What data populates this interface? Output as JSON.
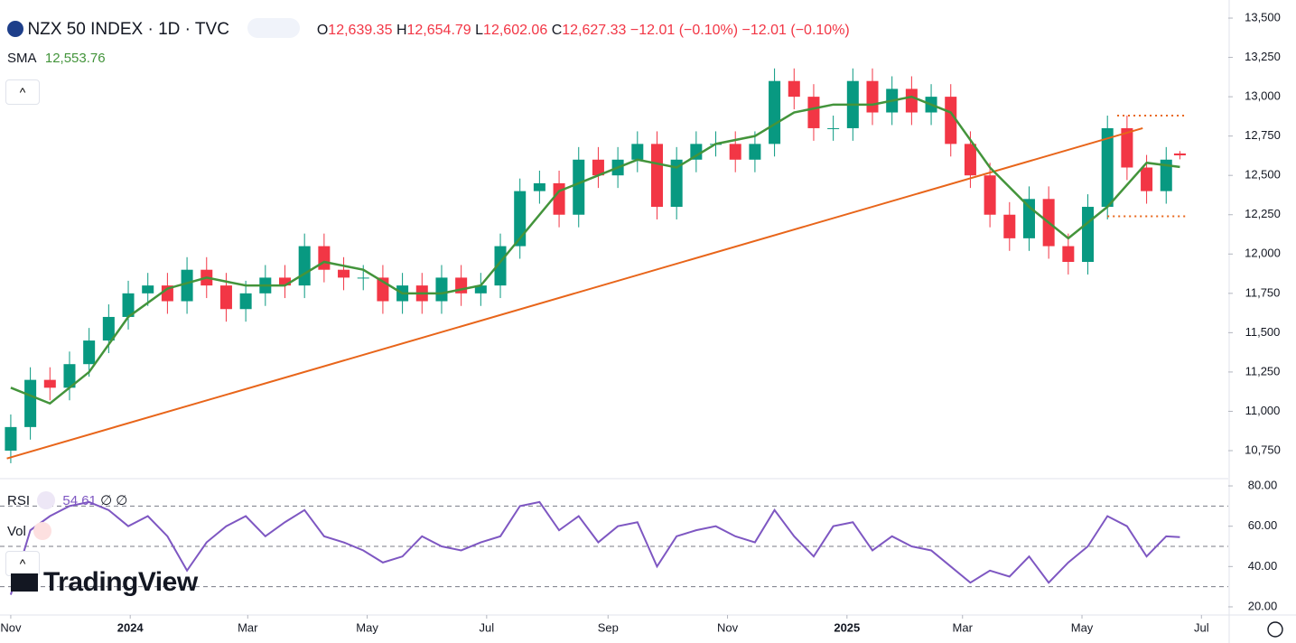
{
  "chart_data": [
    {
      "type": "candlestick",
      "title": "NZX 50 INDEX · 1D · TVC",
      "header": {
        "o_label": "O",
        "o": "12,639.35",
        "h_label": "H",
        "h": "12,654.79",
        "l_label": "L",
        "l": "12,602.06",
        "c_label": "C",
        "c": "12,627.33",
        "change": "−12.01 (−0.10%)",
        "change2": "−12.01 (−0.10%)"
      },
      "x": [
        0,
        10,
        20,
        30,
        40,
        50,
        60,
        70,
        80,
        90,
        100,
        110,
        120,
        130,
        140,
        150,
        160,
        170,
        180,
        190,
        200,
        210,
        220,
        230,
        240,
        250,
        260,
        270,
        280,
        290,
        300,
        310,
        320,
        330,
        340,
        350,
        360,
        370,
        380,
        390,
        400,
        410,
        420,
        430,
        440,
        450,
        460,
        470,
        480,
        490,
        500,
        510,
        520,
        530,
        540,
        550,
        560,
        570,
        580,
        590,
        597
      ],
      "open": [
        10750,
        10900,
        11200,
        11150,
        11300,
        11450,
        11600,
        11750,
        11800,
        11700,
        11900,
        11800,
        11650,
        11750,
        11850,
        11800,
        12050,
        11900,
        11850,
        11850,
        11700,
        11800,
        11700,
        11850,
        11750,
        11800,
        12050,
        12400,
        12450,
        12250,
        12600,
        12500,
        12600,
        12700,
        12300,
        12600,
        12700,
        12700,
        12600,
        12700,
        13100,
        13000,
        12800,
        12800,
        13100,
        12900,
        13050,
        12900,
        13000,
        12700,
        12500,
        12250,
        12100,
        12350,
        12050,
        11950,
        12300,
        12800,
        12550,
        12400,
        12639.35
      ],
      "high": [
        10980,
        11280,
        11280,
        11380,
        11530,
        11680,
        11830,
        11880,
        11880,
        11980,
        11980,
        11880,
        11830,
        11930,
        11930,
        12130,
        12130,
        11980,
        11930,
        11930,
        11880,
        11880,
        11930,
        11930,
        11880,
        12130,
        12480,
        12530,
        12530,
        12680,
        12680,
        12680,
        12780,
        12780,
        12680,
        12780,
        12780,
        12780,
        12780,
        13180,
        13180,
        13080,
        12880,
        13180,
        13180,
        13130,
        13130,
        13080,
        13080,
        12780,
        12580,
        12330,
        12430,
        12430,
        12130,
        12380,
        12880,
        12880,
        12630,
        12680,
        12654.79
      ],
      "low": [
        10670,
        10820,
        11070,
        11070,
        11220,
        11370,
        11520,
        11670,
        11620,
        11620,
        11720,
        11570,
        11570,
        11670,
        11720,
        11720,
        11820,
        11770,
        11770,
        11620,
        11620,
        11620,
        11620,
        11670,
        11670,
        11720,
        11970,
        12320,
        12170,
        12170,
        12420,
        12420,
        12520,
        12220,
        12220,
        12520,
        12620,
        12520,
        12520,
        12620,
        12920,
        12720,
        12720,
        12720,
        12820,
        12820,
        12820,
        12820,
        12620,
        12420,
        12170,
        12020,
        12020,
        11970,
        11870,
        11870,
        12220,
        12470,
        12320,
        12320,
        12602.06
      ],
      "close": [
        10900,
        11200,
        11150,
        11300,
        11450,
        11600,
        11750,
        11800,
        11700,
        11900,
        11800,
        11650,
        11750,
        11850,
        11800,
        12050,
        11900,
        11850,
        11850,
        11700,
        11800,
        11700,
        11850,
        11750,
        11800,
        12050,
        12400,
        12450,
        12250,
        12600,
        12500,
        12600,
        12700,
        12300,
        12600,
        12700,
        12700,
        12600,
        12700,
        13100,
        13000,
        12800,
        12800,
        13100,
        12900,
        13050,
        12900,
        13000,
        12700,
        12500,
        12250,
        12100,
        12350,
        12050,
        11950,
        12300,
        12800,
        12550,
        12400,
        12600,
        12627.33
      ],
      "up_color": "#089981",
      "down_color": "#f23645",
      "sma": {
        "name": "SMA",
        "value_label": "12,553.76",
        "color": "#43943b",
        "x": [
          0,
          20,
          40,
          60,
          80,
          100,
          120,
          140,
          160,
          180,
          200,
          220,
          240,
          260,
          280,
          300,
          320,
          340,
          360,
          380,
          400,
          420,
          440,
          460,
          480,
          500,
          520,
          540,
          560,
          580,
          597
        ],
        "values": [
          11150,
          11050,
          11250,
          11600,
          11780,
          11850,
          11800,
          11800,
          11950,
          11900,
          11750,
          11750,
          11800,
          12100,
          12400,
          12500,
          12600,
          12550,
          12700,
          12750,
          12900,
          12950,
          12950,
          13000,
          12900,
          12550,
          12300,
          12100,
          12300,
          12580,
          12553.76
        ]
      },
      "trendline": {
        "x": [
          -2,
          578
        ],
        "values": [
          10700,
          12800
        ],
        "color": "#e8651a"
      },
      "levels": [
        {
          "x": [
            565,
            600
          ],
          "value": 12880,
          "color": "#e8651a"
        },
        {
          "x": [
            560,
            600
          ],
          "value": 12240,
          "color": "#e8651a"
        }
      ],
      "grid": false,
      "xlim": [
        -5.5,
        621.7
      ],
      "ylim": [
        10572,
        13615
      ],
      "yticks": [
        {
          "value": 10750,
          "label": "10,750"
        },
        {
          "value": 11000,
          "label": "11,000"
        },
        {
          "value": 11250,
          "label": "11,250"
        },
        {
          "value": 11500,
          "label": "11,500"
        },
        {
          "value": 11750,
          "label": "11,750"
        },
        {
          "value": 12000,
          "label": "12,000"
        },
        {
          "value": 12250,
          "label": "12,250"
        },
        {
          "value": 12500,
          "label": "12,500"
        },
        {
          "value": 12750,
          "label": "12,750"
        },
        {
          "value": 13000,
          "label": "13,000"
        },
        {
          "value": 13250,
          "label": "13,250"
        },
        {
          "value": 13500,
          "label": "13,500"
        }
      ],
      "xticks": [
        {
          "value": 0,
          "label": "Nov"
        },
        {
          "value": 61,
          "label": "2024"
        },
        {
          "value": 121,
          "label": "Mar"
        },
        {
          "value": 182,
          "label": "May"
        },
        {
          "value": 243,
          "label": "Jul"
        },
        {
          "value": 305,
          "label": "Sep"
        },
        {
          "value": 366,
          "label": "Nov"
        },
        {
          "value": 427,
          "label": "2025"
        },
        {
          "value": 486,
          "label": "Mar"
        },
        {
          "value": 547,
          "label": "May"
        },
        {
          "value": 608,
          "label": "Jul"
        }
      ]
    },
    {
      "type": "line",
      "title": "RSI",
      "value_label": "54.61",
      "extra": "∅ ∅",
      "vol_label": "Vol",
      "brand": "TradingView",
      "x": [
        0,
        10,
        20,
        30,
        40,
        50,
        60,
        70,
        80,
        90,
        100,
        110,
        120,
        130,
        140,
        150,
        160,
        170,
        180,
        190,
        200,
        210,
        220,
        230,
        240,
        250,
        260,
        270,
        280,
        290,
        300,
        310,
        320,
        330,
        340,
        350,
        360,
        370,
        380,
        390,
        400,
        410,
        420,
        430,
        440,
        450,
        460,
        470,
        480,
        490,
        500,
        510,
        520,
        530,
        540,
        550,
        560,
        570,
        580,
        590,
        597
      ],
      "series": [
        {
          "name": "RSI",
          "color": "#7e57c2",
          "values": [
            26,
            58,
            65,
            70,
            72,
            68,
            60,
            65,
            55,
            38,
            52,
            60,
            65,
            55,
            62,
            68,
            55,
            52,
            48,
            42,
            45,
            55,
            50,
            48,
            52,
            55,
            70,
            72,
            58,
            65,
            52,
            60,
            62,
            40,
            55,
            58,
            60,
            55,
            52,
            68,
            55,
            45,
            60,
            62,
            48,
            55,
            50,
            48,
            40,
            32,
            38,
            35,
            45,
            32,
            42,
            50,
            65,
            60,
            45,
            55,
            54.61
          ]
        }
      ],
      "bands": [
        30,
        50,
        70
      ],
      "xlim": [
        -5.5,
        621.7
      ],
      "ylim": [
        16.4,
        83.6
      ],
      "yticks": [
        {
          "value": 20,
          "label": "20.00"
        },
        {
          "value": 40,
          "label": "40.00"
        },
        {
          "value": 60,
          "label": "60.00"
        },
        {
          "value": 80,
          "label": "80.00"
        }
      ]
    }
  ]
}
